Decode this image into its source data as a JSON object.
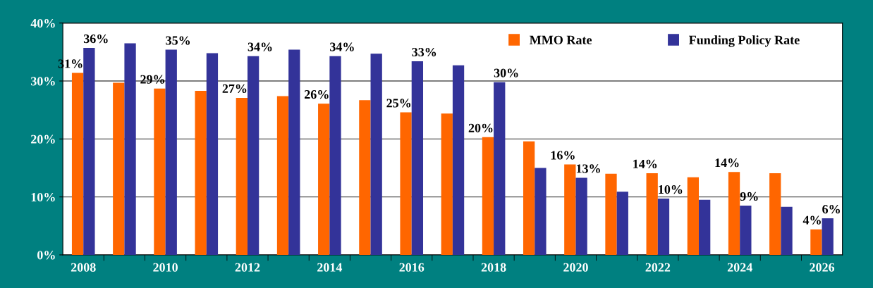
{
  "chart_data": {
    "type": "bar",
    "categories": [
      "2008",
      null,
      "2010",
      null,
      "2012",
      null,
      "2014",
      null,
      "2016",
      null,
      "2018",
      null,
      "2020",
      null,
      "2022",
      null,
      "2024",
      null,
      "2026"
    ],
    "series": [
      {
        "name": "MMO Rate",
        "color": "#ff6600",
        "values": [
          31.4,
          29.7,
          28.7,
          28.3,
          27.1,
          27.4,
          26.1,
          26.7,
          24.6,
          24.4,
          20.3,
          19.6,
          15.6,
          14.0,
          14.1,
          13.4,
          14.3,
          14.1,
          4.4
        ],
        "value_labels": [
          "31%",
          null,
          "29%",
          null,
          "27%",
          null,
          "26%",
          null,
          "25%",
          null,
          "20%",
          null,
          "16%",
          null,
          "14%",
          null,
          "14%",
          null,
          "4%"
        ]
      },
      {
        "name": "Funding Policy Rate",
        "color": "#333399",
        "values": [
          35.7,
          36.5,
          35.4,
          34.8,
          34.3,
          35.4,
          34.3,
          34.7,
          33.4,
          32.7,
          29.8,
          15.0,
          13.3,
          10.9,
          9.7,
          9.5,
          8.5,
          8.3,
          6.3
        ],
        "value_labels": [
          "36%",
          null,
          "35%",
          null,
          "34%",
          null,
          "34%",
          null,
          "33%",
          null,
          "30%",
          null,
          "13%",
          null,
          "10%",
          null,
          "9%",
          null,
          "6%"
        ]
      }
    ],
    "ylim": [
      0,
      40
    ],
    "yticks": [
      {
        "value": 0,
        "label": "0%"
      },
      {
        "value": 10,
        "label": "10%"
      },
      {
        "value": 20,
        "label": "20%"
      },
      {
        "value": 30,
        "label": "30%"
      },
      {
        "value": 40,
        "label": "40%"
      }
    ],
    "grid": "y",
    "legend": "top right"
  }
}
